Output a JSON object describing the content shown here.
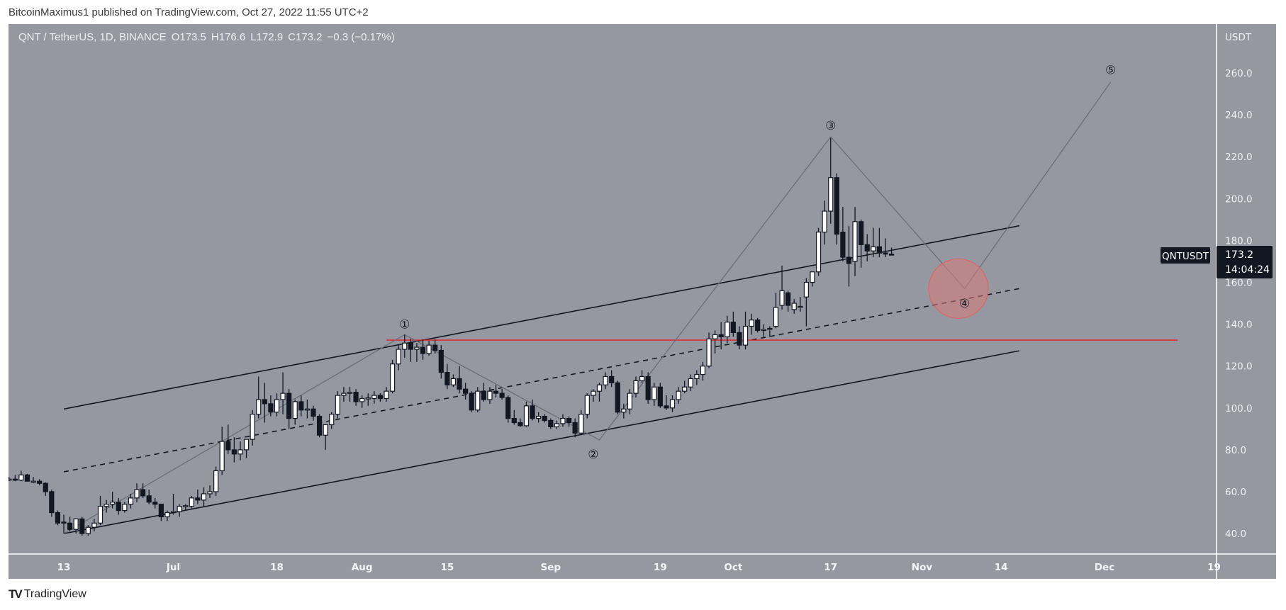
{
  "header": {
    "text": "BitcoinMaximus1 published on TradingView.com, Oct 27, 2022 11:55 UTC+2"
  },
  "legend": {
    "symbol": "QNT / TetherUS, 1D, BINANCE",
    "open": "O173.5",
    "high": "H176.6",
    "low": "L172.9",
    "close": "C173.2",
    "change": "−0.3 (−0.17%)"
  },
  "price_axis": {
    "unit": "USDT",
    "ticks": [
      "260.0",
      "240.0",
      "220.0",
      "200.0",
      "180.0",
      "160.0",
      "140.0",
      "120.0",
      "100.0",
      "80.0",
      "60.0",
      "40.0"
    ]
  },
  "price_tag": {
    "symbol": "QNTUSDT",
    "price": "173.2",
    "countdown": "14:04:24"
  },
  "footer": {
    "logo": "TV",
    "brand": "TradingView"
  },
  "colors": {
    "background": "#9598a1",
    "candle_up": "#ffffff",
    "candle_down": "#131722",
    "resistance": "#e0201f",
    "wave": "#6b6e76",
    "target_zone": "#d97a7a"
  },
  "chart_data": {
    "type": "candlestick",
    "title": "QNT / TetherUS, 1D, BINANCE",
    "ylabel": "USDT",
    "ylim": [
      30,
      270
    ],
    "xlim": [
      "2022-06-03",
      "2022-12-21"
    ],
    "grid": false,
    "x_ticks": [
      {
        "label": "13",
        "date": "2022-06-13"
      },
      {
        "label": "Jul",
        "date": "2022-07-01"
      },
      {
        "label": "18",
        "date": "2022-07-18"
      },
      {
        "label": "Aug",
        "date": "2022-08-01"
      },
      {
        "label": "15",
        "date": "2022-08-15"
      },
      {
        "label": "Sep",
        "date": "2022-09-01"
      },
      {
        "label": "19",
        "date": "2022-09-19"
      },
      {
        "label": "Oct",
        "date": "2022-10-01"
      },
      {
        "label": "17",
        "date": "2022-10-17"
      },
      {
        "label": "Nov",
        "date": "2022-11-01"
      },
      {
        "label": "14",
        "date": "2022-11-14"
      },
      {
        "label": "Dec",
        "date": "2022-12-01"
      },
      {
        "label": "19",
        "date": "2022-12-19"
      }
    ],
    "y_ticks": [
      40,
      60,
      80,
      100,
      120,
      140,
      160,
      180,
      200,
      220,
      240,
      260
    ],
    "ohlc_columns": [
      "date",
      "open",
      "high",
      "low",
      "close"
    ],
    "ohlc": [
      [
        "2022-06-04",
        66,
        67,
        65,
        66
      ],
      [
        "2022-06-05",
        66,
        68,
        65,
        65.5
      ],
      [
        "2022-06-06",
        65.5,
        70,
        65,
        68
      ],
      [
        "2022-06-07",
        68,
        68.5,
        65,
        65
      ],
      [
        "2022-06-08",
        65,
        67,
        64,
        65
      ],
      [
        "2022-06-09",
        65,
        66,
        63,
        64
      ],
      [
        "2022-06-10",
        64,
        64.5,
        58,
        60
      ],
      [
        "2022-06-11",
        60,
        61,
        48,
        50
      ],
      [
        "2022-06-12",
        50,
        51,
        44,
        45
      ],
      [
        "2022-06-13",
        45.5,
        49,
        40,
        45
      ],
      [
        "2022-06-14",
        45,
        48,
        41,
        42
      ],
      [
        "2022-06-15",
        42,
        47,
        40,
        47
      ],
      [
        "2022-06-16",
        47,
        48,
        39,
        40
      ],
      [
        "2022-06-17",
        40,
        44,
        39,
        43
      ],
      [
        "2022-06-18",
        43,
        47,
        41,
        45
      ],
      [
        "2022-06-19",
        45,
        58,
        44,
        53
      ],
      [
        "2022-06-20",
        53,
        56,
        50,
        54
      ],
      [
        "2022-06-21",
        54,
        60,
        52,
        55
      ],
      [
        "2022-06-22",
        55,
        57,
        49,
        51
      ],
      [
        "2022-06-23",
        51,
        55,
        50,
        54
      ],
      [
        "2022-06-24",
        54,
        59,
        52,
        57
      ],
      [
        "2022-06-25",
        57,
        64,
        55,
        61
      ],
      [
        "2022-06-26",
        61,
        64,
        57,
        58
      ],
      [
        "2022-06-27",
        58,
        61,
        54,
        55
      ],
      [
        "2022-06-28",
        55,
        57,
        52,
        54
      ],
      [
        "2022-06-29",
        54,
        54,
        46,
        48
      ],
      [
        "2022-06-30",
        48,
        51,
        46,
        50
      ],
      [
        "2022-07-01",
        50,
        59,
        49,
        50.5
      ],
      [
        "2022-07-02",
        50.5,
        54,
        48,
        53
      ],
      [
        "2022-07-03",
        53,
        54,
        51,
        53.3
      ],
      [
        "2022-07-04",
        53,
        58,
        52,
        57
      ],
      [
        "2022-07-05",
        57,
        61,
        54,
        56
      ],
      [
        "2022-07-06",
        56,
        62,
        53,
        59
      ],
      [
        "2022-07-07",
        59,
        63,
        57,
        60
      ],
      [
        "2022-07-08",
        60,
        72,
        58,
        70
      ],
      [
        "2022-07-09",
        70,
        91,
        68,
        84
      ],
      [
        "2022-07-10",
        84,
        92,
        78,
        80
      ],
      [
        "2022-07-11",
        80,
        86,
        74,
        78
      ],
      [
        "2022-07-12",
        78,
        84,
        75,
        80
      ],
      [
        "2022-07-13",
        80,
        85,
        76,
        85
      ],
      [
        "2022-07-14",
        85,
        99,
        82,
        97
      ],
      [
        "2022-07-15",
        97,
        115,
        95,
        104
      ],
      [
        "2022-07-16",
        104,
        112,
        93,
        102
      ],
      [
        "2022-07-17",
        102,
        106,
        96,
        98
      ],
      [
        "2022-07-18",
        98,
        107,
        96,
        104
      ],
      [
        "2022-07-19",
        104,
        117,
        97,
        107
      ],
      [
        "2022-07-20",
        107,
        109,
        90,
        95
      ],
      [
        "2022-07-21",
        95,
        104,
        92,
        103
      ],
      [
        "2022-07-22",
        103,
        106,
        96,
        99
      ],
      [
        "2022-07-23",
        99,
        104,
        95,
        99.5
      ],
      [
        "2022-07-24",
        99.5,
        101,
        94,
        96
      ],
      [
        "2022-07-25",
        96,
        97,
        86,
        87
      ],
      [
        "2022-07-26",
        87,
        92,
        80,
        92
      ],
      [
        "2022-07-27",
        92,
        98,
        90,
        97
      ],
      [
        "2022-07-28",
        97,
        108,
        95,
        106
      ],
      [
        "2022-07-29",
        106,
        110,
        103,
        107
      ],
      [
        "2022-07-30",
        107,
        110,
        103,
        107.5
      ],
      [
        "2022-07-31",
        107.5,
        109,
        101,
        103
      ],
      [
        "2022-08-01",
        103,
        106,
        100,
        104.5
      ],
      [
        "2022-08-02",
        104.5,
        107,
        101,
        104.8
      ],
      [
        "2022-08-03",
        104.5,
        108,
        102,
        106
      ],
      [
        "2022-08-04",
        106,
        107,
        103,
        104.5
      ],
      [
        "2022-08-05",
        104.5,
        110,
        103,
        108
      ],
      [
        "2022-08-06",
        108,
        123,
        107,
        121
      ],
      [
        "2022-08-07",
        121,
        130,
        118,
        128
      ],
      [
        "2022-08-08",
        128,
        135,
        124,
        131
      ],
      [
        "2022-08-09",
        131,
        133,
        122,
        128
      ],
      [
        "2022-08-10",
        128,
        131,
        122,
        129
      ],
      [
        "2022-08-11",
        129,
        133,
        123,
        126
      ],
      [
        "2022-08-12",
        126,
        132,
        125,
        130
      ],
      [
        "2022-08-13",
        130,
        133,
        126,
        127.5
      ],
      [
        "2022-08-14",
        127.5,
        130,
        114,
        117
      ],
      [
        "2022-08-15",
        117,
        121,
        109,
        111
      ],
      [
        "2022-08-16",
        111,
        116,
        110,
        114
      ],
      [
        "2022-08-17",
        114,
        120,
        107,
        109
      ],
      [
        "2022-08-18",
        109,
        112,
        104,
        107
      ],
      [
        "2022-08-19",
        107,
        108,
        98,
        99
      ],
      [
        "2022-08-20",
        99,
        110,
        98,
        108
      ],
      [
        "2022-08-21",
        108,
        112,
        103,
        104
      ],
      [
        "2022-08-22",
        104,
        110,
        102,
        108
      ],
      [
        "2022-08-23",
        108,
        111,
        105,
        107
      ],
      [
        "2022-08-24",
        107,
        109,
        104,
        105
      ],
      [
        "2022-08-25",
        105,
        106,
        93,
        95
      ],
      [
        "2022-08-26",
        95,
        99,
        92,
        93
      ],
      [
        "2022-08-27",
        93,
        95,
        91,
        91.5
      ],
      [
        "2022-08-28",
        91.5,
        103,
        91,
        101
      ],
      [
        "2022-08-29",
        101,
        104,
        94,
        95
      ],
      [
        "2022-08-30",
        95,
        98,
        93,
        96
      ],
      [
        "2022-08-31",
        96,
        97,
        93,
        94
      ],
      [
        "2022-09-01",
        94,
        95,
        90,
        91
      ],
      [
        "2022-09-02",
        91,
        94,
        90,
        92.5
      ],
      [
        "2022-09-03",
        92.5,
        97,
        91,
        95
      ],
      [
        "2022-09-04",
        95,
        96,
        91,
        93
      ],
      [
        "2022-09-05",
        93,
        95,
        86,
        88
      ],
      [
        "2022-09-06",
        88,
        99,
        87,
        97
      ],
      [
        "2022-09-07",
        97,
        107,
        95,
        106
      ],
      [
        "2022-09-08",
        106,
        109,
        103,
        108
      ],
      [
        "2022-09-09",
        108,
        112,
        103,
        111
      ],
      [
        "2022-09-10",
        111,
        117,
        109,
        115
      ],
      [
        "2022-09-11",
        115,
        118,
        110,
        112
      ],
      [
        "2022-09-12",
        112,
        113,
        97,
        98
      ],
      [
        "2022-09-13",
        98,
        102,
        95,
        99.5
      ],
      [
        "2022-09-14",
        99.5,
        109,
        97,
        107
      ],
      [
        "2022-09-15",
        107,
        115,
        105,
        113
      ],
      [
        "2022-09-16",
        113,
        118,
        112,
        115
      ],
      [
        "2022-09-17",
        115,
        117,
        102,
        104
      ],
      [
        "2022-09-18",
        104,
        112,
        101,
        110
      ],
      [
        "2022-09-19",
        110,
        112,
        100,
        101
      ],
      [
        "2022-09-20",
        101,
        106,
        99,
        100
      ],
      [
        "2022-09-21",
        100,
        106,
        98,
        104
      ],
      [
        "2022-09-22",
        104,
        110,
        102,
        108
      ],
      [
        "2022-09-23",
        108,
        113,
        107,
        110
      ],
      [
        "2022-09-24",
        110,
        116,
        108,
        114
      ],
      [
        "2022-09-25",
        114,
        118,
        111,
        116
      ],
      [
        "2022-09-26",
        116,
        122,
        113,
        120
      ],
      [
        "2022-09-27",
        120,
        136,
        119,
        133
      ],
      [
        "2022-09-28",
        133,
        137,
        126,
        135
      ],
      [
        "2022-09-29",
        135,
        141,
        128,
        134
      ],
      [
        "2022-09-30",
        134,
        144,
        131,
        141
      ],
      [
        "2022-10-01",
        141,
        146,
        134,
        136
      ],
      [
        "2022-10-02",
        136,
        139,
        128,
        130
      ],
      [
        "2022-10-03",
        130,
        146,
        128,
        139
      ],
      [
        "2022-10-04",
        139,
        145,
        135,
        142
      ],
      [
        "2022-10-05",
        142,
        143,
        136,
        137
      ],
      [
        "2022-10-06",
        137,
        140,
        134,
        137.5
      ],
      [
        "2022-10-07",
        137.5,
        139,
        134,
        138
      ],
      [
        "2022-10-08",
        139,
        155,
        138,
        148
      ],
      [
        "2022-10-09",
        149,
        168,
        147,
        156
      ],
      [
        "2022-10-10",
        155,
        156,
        146,
        149
      ],
      [
        "2022-10-11",
        147,
        152,
        145,
        150
      ],
      [
        "2022-10-12",
        148,
        153,
        146,
        148.5
      ],
      [
        "2022-10-13",
        153,
        162,
        139,
        160
      ],
      [
        "2022-10-14",
        160,
        165,
        158,
        165
      ],
      [
        "2022-10-15",
        165,
        186,
        163,
        184
      ],
      [
        "2022-10-16",
        184,
        199,
        178,
        194
      ],
      [
        "2022-10-17",
        194,
        229,
        188,
        210
      ],
      [
        "2022-10-18",
        210,
        212,
        178,
        183
      ],
      [
        "2022-10-19",
        184,
        196,
        170,
        172
      ],
      [
        "2022-10-20",
        172,
        187,
        158,
        169
      ],
      [
        "2022-10-21",
        170,
        196,
        163,
        189
      ],
      [
        "2022-10-22",
        189,
        190,
        167,
        178
      ],
      [
        "2022-10-23",
        178,
        183,
        170,
        175
      ],
      [
        "2022-10-24",
        175,
        186,
        172,
        177
      ],
      [
        "2022-10-25",
        177,
        186,
        172,
        174
      ],
      [
        "2022-10-26",
        174,
        181,
        172,
        173.5
      ],
      [
        "2022-10-27",
        173.5,
        176.6,
        172.9,
        173.2
      ]
    ],
    "drawings": {
      "channel_upper": [
        [
          "2022-06-13",
          99.5
        ],
        [
          "2022-11-17",
          187
        ]
      ],
      "channel_mid": [
        [
          "2022-06-13",
          69.5
        ],
        [
          "2022-11-17",
          157
        ]
      ],
      "channel_lower": [
        [
          "2022-06-13",
          40
        ],
        [
          "2022-11-17",
          127.3
        ]
      ],
      "resistance": {
        "price": 132.4,
        "from": "2022-08-05",
        "to": "2022-12-13"
      },
      "wave_path": [
        [
          "2022-06-13",
          40
        ],
        [
          "2022-08-08",
          135
        ],
        [
          "2022-09-09",
          84.7
        ],
        [
          "2022-10-17",
          229.5
        ],
        [
          "2022-11-08",
          157
        ],
        [
          "2022-12-02",
          255.6
        ]
      ],
      "wave_labels": [
        {
          "label": "①",
          "date": "2022-08-08",
          "price": 140
        },
        {
          "label": "②",
          "date": "2022-09-08",
          "price": 78
        },
        {
          "label": "③",
          "date": "2022-10-17",
          "price": 235
        },
        {
          "label": "④",
          "date": "2022-11-08",
          "price": 150
        },
        {
          "label": "⑤",
          "date": "2022-12-02",
          "price": 261.5
        }
      ],
      "target_zone": {
        "date": "2022-11-07",
        "price": 157
      }
    }
  }
}
